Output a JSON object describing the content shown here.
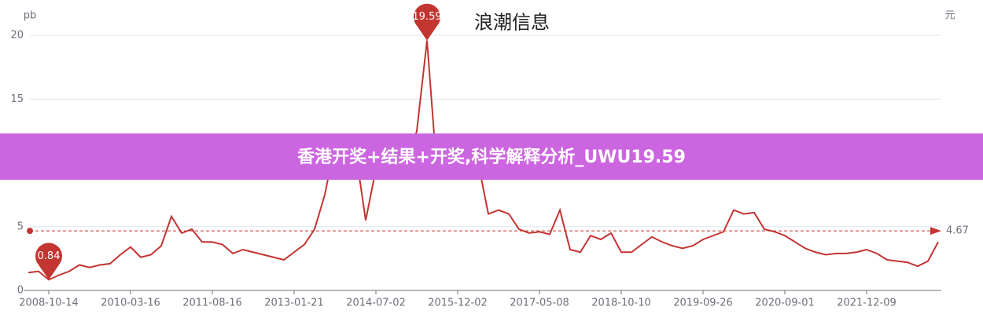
{
  "chart_data": {
    "type": "line",
    "title": "浪潮信息",
    "y_label": "pb",
    "y2_label": "元",
    "banner": "香港开奖+结果+开奖,科学解释分析_UWU19.59",
    "x": [
      null,
      null,
      "2008-10-14",
      null,
      null,
      null,
      null,
      null,
      null,
      null,
      "2010-03-16",
      null,
      null,
      null,
      null,
      null,
      null,
      null,
      "2011-08-16",
      null,
      null,
      null,
      null,
      null,
      null,
      null,
      "2013-01-21",
      null,
      null,
      null,
      null,
      null,
      null,
      null,
      "2014-07-02",
      null,
      null,
      null,
      null,
      null,
      null,
      null,
      "2015-12-02",
      null,
      null,
      null,
      null,
      null,
      null,
      null,
      "2017-05-08",
      null,
      null,
      null,
      null,
      null,
      null,
      null,
      "2018-10-10",
      null,
      null,
      null,
      null,
      null,
      null,
      null,
      "2019-09-26",
      null,
      null,
      null,
      null,
      null,
      null,
      null,
      "2020-09-01",
      null,
      null,
      null,
      null,
      null,
      null,
      null,
      "2021-12-09",
      null,
      null,
      null,
      null,
      null,
      null,
      null
    ],
    "series": [
      {
        "color": "#c23531",
        "values": [
          1.4,
          1.5,
          0.84,
          1.2,
          1.5,
          2.0,
          1.8,
          2.0,
          2.1,
          2.8,
          3.4,
          2.6,
          2.8,
          3.5,
          5.8,
          4.5,
          4.8,
          3.8,
          3.8,
          3.6,
          2.9,
          3.2,
          3.0,
          2.8,
          2.6,
          2.4,
          3.0,
          3.6,
          4.8,
          7.5,
          11.5,
          9.5,
          11.0,
          5.5,
          9.5,
          10.0,
          10.5,
          9.8,
          12.5,
          19.59,
          9.0,
          11.0,
          12.0,
          9.5,
          10.0,
          6.0,
          6.3,
          6.0,
          4.8,
          4.5,
          4.6,
          4.4,
          6.3,
          3.2,
          3.0,
          4.3,
          4.0,
          4.5,
          3.0,
          3.0,
          3.6,
          4.2,
          3.8,
          3.5,
          3.3,
          3.5,
          4.0,
          4.3,
          4.6,
          6.3,
          6.0,
          6.1,
          4.8,
          4.6,
          4.3,
          3.8,
          3.3,
          3.0,
          2.8,
          2.9,
          2.9,
          3.0,
          3.2,
          2.9,
          2.4,
          2.3,
          2.2,
          1.9,
          2.3,
          3.8
        ]
      }
    ],
    "mark_line": 4.67,
    "ylim": [
      0,
      20
    ],
    "yticks": [
      0,
      5,
      10,
      15,
      20
    ],
    "grid": true
  }
}
